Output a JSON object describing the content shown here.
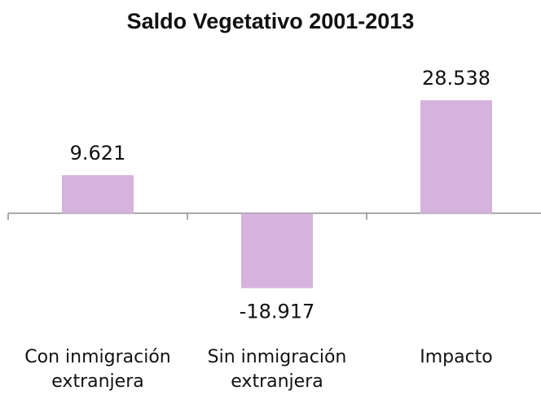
{
  "chart_data": {
    "type": "bar",
    "title": "Saldo Vegetativo 2001-2013",
    "categories": [
      "Con inmigración extranjera",
      "Sin inmigración extranjera",
      "Impacto"
    ],
    "values": [
      9621,
      -18917,
      28538
    ],
    "value_labels": [
      "9.621",
      "-18.917",
      "28.538"
    ],
    "color": "#d5b3dc",
    "ylim": [
      -20000,
      30000
    ]
  }
}
